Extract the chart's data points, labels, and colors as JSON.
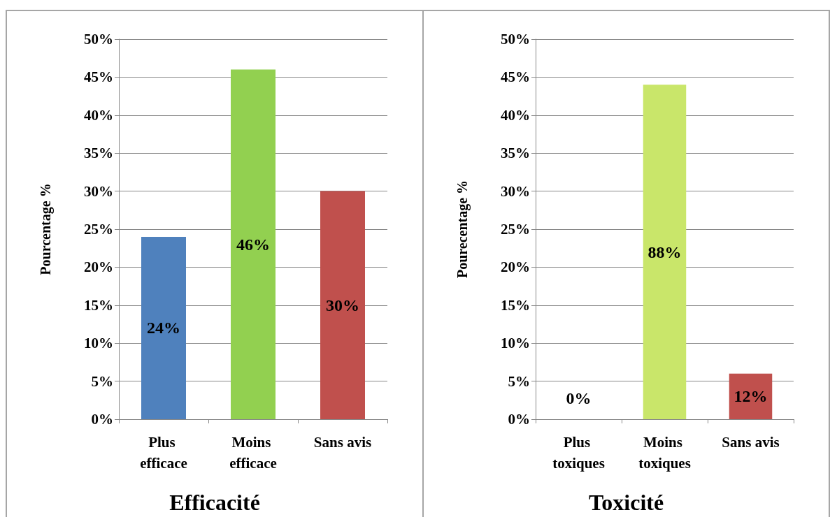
{
  "chart_data": [
    {
      "type": "bar",
      "title": "Efficacité",
      "ylabel": "Pourcentage %",
      "categories": [
        "Plus efficace",
        "Moins efficace",
        "Sans avis"
      ],
      "values": [
        24,
        46,
        30
      ],
      "colors": [
        "#4f81bd",
        "#92d050",
        "#c0504d"
      ],
      "value_labels": [
        "24%",
        "46%",
        "30%"
      ],
      "ylim": [
        0,
        50
      ],
      "yticks": [
        {
          "value": 0,
          "label": "0%"
        },
        {
          "value": 5,
          "label": "5%"
        },
        {
          "value": 10,
          "label": "10%"
        },
        {
          "value": 15,
          "label": "15%"
        },
        {
          "value": 20,
          "label": "20%"
        },
        {
          "value": 25,
          "label": "25%"
        },
        {
          "value": 30,
          "label": "30%"
        },
        {
          "value": 35,
          "label": "35%"
        },
        {
          "value": 40,
          "label": "40%"
        },
        {
          "value": 45,
          "label": "45%"
        },
        {
          "value": 50,
          "label": "50%"
        }
      ],
      "grid": "y"
    },
    {
      "type": "bar",
      "title": "Toxicité",
      "ylabel": "Pourecentage %",
      "categories": [
        "Plus toxiques",
        "Moins toxiques",
        "Sans avis"
      ],
      "values": [
        0,
        44,
        6
      ],
      "colors": [
        "#4f81bd",
        "#c9e66a",
        "#c0504d"
      ],
      "annotations": [
        "0%",
        "88%",
        "12%"
      ],
      "ylim": [
        0,
        50
      ],
      "yticks": [
        {
          "value": 0,
          "label": "0%"
        },
        {
          "value": 5,
          "label": "5%"
        },
        {
          "value": 10,
          "label": "10%"
        },
        {
          "value": 15,
          "label": "15%"
        },
        {
          "value": 20,
          "label": "20%"
        },
        {
          "value": 25,
          "label": "25%"
        },
        {
          "value": 30,
          "label": "30%"
        },
        {
          "value": 35,
          "label": "35%"
        },
        {
          "value": 40,
          "label": "40%"
        },
        {
          "value": 45,
          "label": "45%"
        },
        {
          "value": 50,
          "label": "50%"
        }
      ],
      "grid": "y"
    }
  ]
}
